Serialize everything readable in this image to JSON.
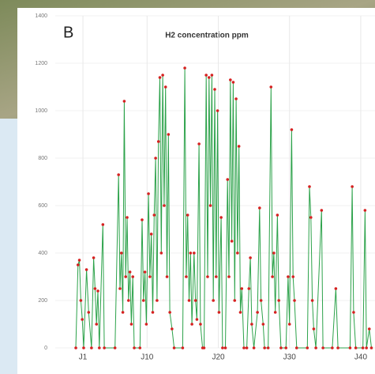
{
  "chart_data": {
    "type": "line",
    "panel_label": "B",
    "title": "H2 concentration  ppm",
    "series": [
      {
        "color": "#2ca24a",
        "marker_color": "#d62020",
        "x": [
          0.0,
          0.3,
          0.5,
          0.7,
          0.9,
          1.1,
          1.5,
          1.8,
          2.2,
          2.5,
          2.7,
          2.9,
          3.1,
          3.3,
          3.8,
          4.0,
          5.5,
          6.0,
          6.2,
          6.4,
          6.6,
          6.8,
          7.0,
          7.2,
          7.4,
          7.6,
          7.8,
          8.0,
          8.2,
          9.0,
          9.3,
          9.5,
          9.7,
          9.9,
          10.2,
          10.4,
          10.6,
          10.8,
          11.0,
          11.2,
          11.4,
          11.6,
          11.8,
          12.0,
          12.2,
          12.4,
          12.6,
          12.8,
          13.0,
          13.2,
          13.5,
          13.8,
          15.0,
          15.3,
          15.5,
          15.7,
          15.9,
          16.1,
          16.3,
          16.6,
          16.8,
          17.0,
          17.3,
          17.5,
          17.8,
          18.0,
          18.3,
          18.5,
          18.7,
          18.9,
          19.1,
          19.3,
          19.5,
          19.7,
          19.9,
          20.1,
          20.4,
          20.6,
          21.0,
          21.3,
          21.5,
          21.7,
          21.9,
          22.1,
          22.3,
          22.5,
          22.7,
          22.9,
          23.1,
          23.3,
          23.6,
          24.0,
          24.3,
          24.5,
          24.7,
          25.0,
          25.5,
          25.8,
          26.0,
          26.3,
          26.5,
          27.0,
          27.4,
          27.6,
          27.8,
          28.0,
          28.3,
          28.5,
          28.8,
          29.5,
          29.8,
          30.0,
          30.3,
          30.5,
          30.7,
          31.0,
          32.5,
          32.8,
          33.0,
          33.2,
          33.4,
          33.7,
          34.5,
          34.7,
          36.0,
          36.5,
          36.8,
          38.5,
          38.8,
          39.0,
          39.3,
          40.3,
          40.6,
          40.8,
          41.2,
          41.5
        ],
        "values": [
          0,
          350,
          370,
          200,
          120,
          0,
          330,
          150,
          0,
          380,
          250,
          100,
          240,
          0,
          520,
          0,
          0,
          730,
          250,
          400,
          150,
          1040,
          300,
          550,
          200,
          320,
          100,
          300,
          0,
          0,
          540,
          200,
          320,
          100,
          650,
          300,
          480,
          150,
          560,
          800,
          200,
          870,
          1140,
          400,
          1150,
          600,
          1100,
          300,
          900,
          150,
          80,
          0,
          0,
          1180,
          300,
          560,
          200,
          400,
          100,
          400,
          200,
          120,
          860,
          100,
          0,
          0,
          1150,
          300,
          1140,
          600,
          1150,
          200,
          1090,
          300,
          1000,
          150,
          550,
          0,
          0,
          710,
          300,
          1130,
          450,
          1120,
          200,
          1050,
          400,
          850,
          150,
          250,
          0,
          0,
          250,
          380,
          100,
          0,
          150,
          590,
          200,
          100,
          0,
          0,
          1100,
          300,
          400,
          150,
          560,
          200,
          0,
          0,
          300,
          100,
          920,
          300,
          200,
          0,
          0,
          680,
          550,
          200,
          80,
          0,
          580,
          0,
          0,
          250,
          0,
          0,
          680,
          150,
          0,
          0,
          580,
          0,
          80,
          0
        ]
      }
    ],
    "xlim": [
      -2,
      42
    ],
    "xticks": [
      {
        "value": 1,
        "label": "J1"
      },
      {
        "value": 10,
        "label": "J10"
      },
      {
        "value": 20,
        "label": "J20"
      },
      {
        "value": 30,
        "label": "J30"
      },
      {
        "value": 40,
        "label": "J40"
      }
    ],
    "ylim": [
      0,
      1400
    ],
    "yticks": [
      0,
      200,
      400,
      600,
      800,
      1000,
      1200,
      1400
    ],
    "grid": true
  }
}
